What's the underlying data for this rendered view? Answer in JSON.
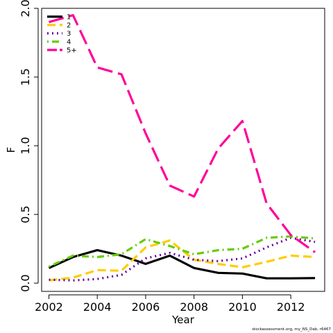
{
  "chart_data": {
    "type": "line",
    "xlabel": "Year",
    "ylabel": "F",
    "xlim": [
      2001.7,
      2013.4
    ],
    "ylim": [
      -0.06,
      2.0
    ],
    "x_ticks": [
      2002,
      2004,
      2006,
      2008,
      2010,
      2012
    ],
    "y_ticks": [
      0.0,
      0.5,
      1.0,
      1.5,
      2.0
    ],
    "y_tick_labels": [
      "0.0",
      "0.5",
      "1.0",
      "1.5",
      "2.0"
    ],
    "grid": false,
    "legend_position": "top-left",
    "x": [
      2002,
      2003,
      2004,
      2005,
      2006,
      2007,
      2008,
      2009,
      2010,
      2011,
      2012,
      2013
    ],
    "series": [
      {
        "name": "1",
        "color": "#000000",
        "dash": "solid",
        "values": [
          0.11,
          0.19,
          0.24,
          0.2,
          0.14,
          0.2,
          0.11,
          0.075,
          0.07,
          0.035,
          0.035,
          0.037
        ]
      },
      {
        "name": "2",
        "color": "#FFCC00",
        "dash": "dashed",
        "values": [
          0.02,
          0.04,
          0.095,
          0.09,
          0.26,
          0.31,
          0.17,
          0.14,
          0.115,
          0.155,
          0.2,
          0.19
        ]
      },
      {
        "name": "3",
        "color": "#660099",
        "dash": "dotted",
        "values": [
          0.025,
          0.02,
          0.03,
          0.06,
          0.18,
          0.22,
          0.17,
          0.16,
          0.18,
          0.26,
          0.33,
          0.3
        ]
      },
      {
        "name": "4",
        "color": "#66CC00",
        "dash": "dotdash",
        "values": [
          0.12,
          0.2,
          0.19,
          0.21,
          0.32,
          0.27,
          0.21,
          0.24,
          0.25,
          0.33,
          0.34,
          0.325
        ]
      },
      {
        "name": "5+",
        "color": "#FF0099",
        "dash": "longdash",
        "values": [
          1.9,
          1.95,
          1.57,
          1.52,
          1.09,
          0.71,
          0.63,
          0.98,
          1.18,
          0.58,
          0.35,
          0.225
        ]
      }
    ]
  },
  "footer_text": "stockassessment.org, my_NS_Dab, r6467"
}
